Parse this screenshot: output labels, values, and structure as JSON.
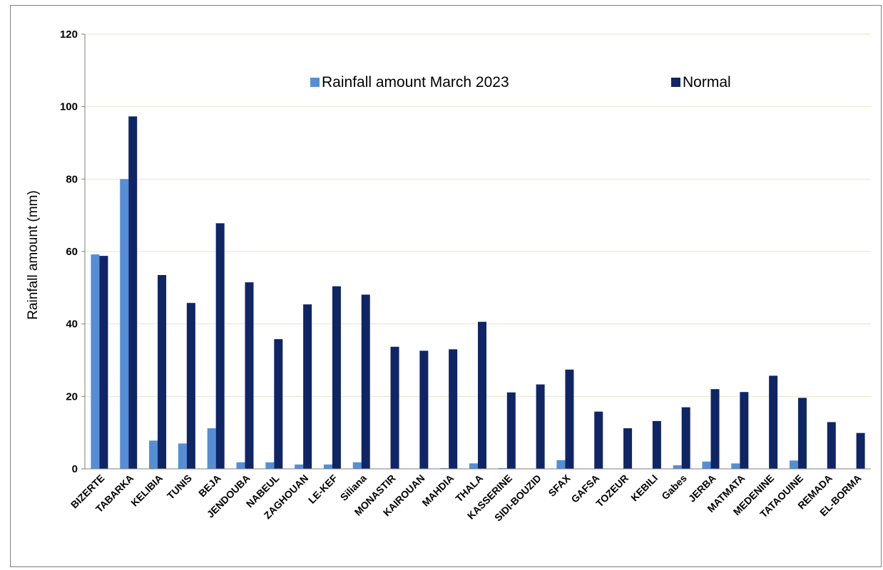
{
  "chart_data": {
    "type": "bar",
    "ylabel": "Rainfall amount (mm)",
    "xlabel": "",
    "ylim": [
      0,
      120
    ],
    "yticks": [
      0,
      20,
      40,
      60,
      80,
      100,
      120
    ],
    "grid": true,
    "legend_position": "top-center",
    "categories": [
      "BIZERTE",
      "TABARKA",
      "KELIBIA",
      "TUNIS",
      "BEJA",
      "JENDOUBA",
      "NABEUL",
      "ZAGHOUAN",
      "LE-KEF",
      "Siliana",
      "MONASTIR",
      "KAIROUAN",
      "MAHDIA",
      "THALA",
      "KASSERINE",
      "SIDI-BOUZID",
      "SFAX",
      "GAFSA",
      "TOZEUR",
      "KEBILI",
      "Gabes",
      "JERBA",
      "MATMATA",
      "MEDENINE",
      "TATAOUINE",
      "REMADA",
      "EL-BORMA"
    ],
    "series": [
      {
        "name": "Rainfall amount March 2023",
        "color": "#558ed5",
        "values": [
          59.2,
          80.0,
          7.8,
          7.0,
          11.2,
          1.8,
          1.8,
          1.2,
          1.2,
          1.8,
          0.0,
          0.0,
          0.2,
          1.5,
          0.2,
          0.0,
          2.4,
          0.0,
          0.0,
          0.0,
          1.0,
          2.0,
          1.5,
          0.0,
          2.3,
          0.0,
          0.0
        ]
      },
      {
        "name": "Normal",
        "color": "#0f2565",
        "values": [
          58.8,
          97.3,
          53.5,
          45.8,
          67.8,
          51.5,
          35.8,
          45.4,
          50.4,
          48.1,
          33.7,
          32.6,
          33.0,
          40.6,
          21.1,
          23.3,
          27.4,
          15.8,
          11.2,
          13.2,
          17.0,
          22.0,
          21.2,
          25.7,
          19.6,
          12.9,
          9.9
        ]
      }
    ]
  }
}
